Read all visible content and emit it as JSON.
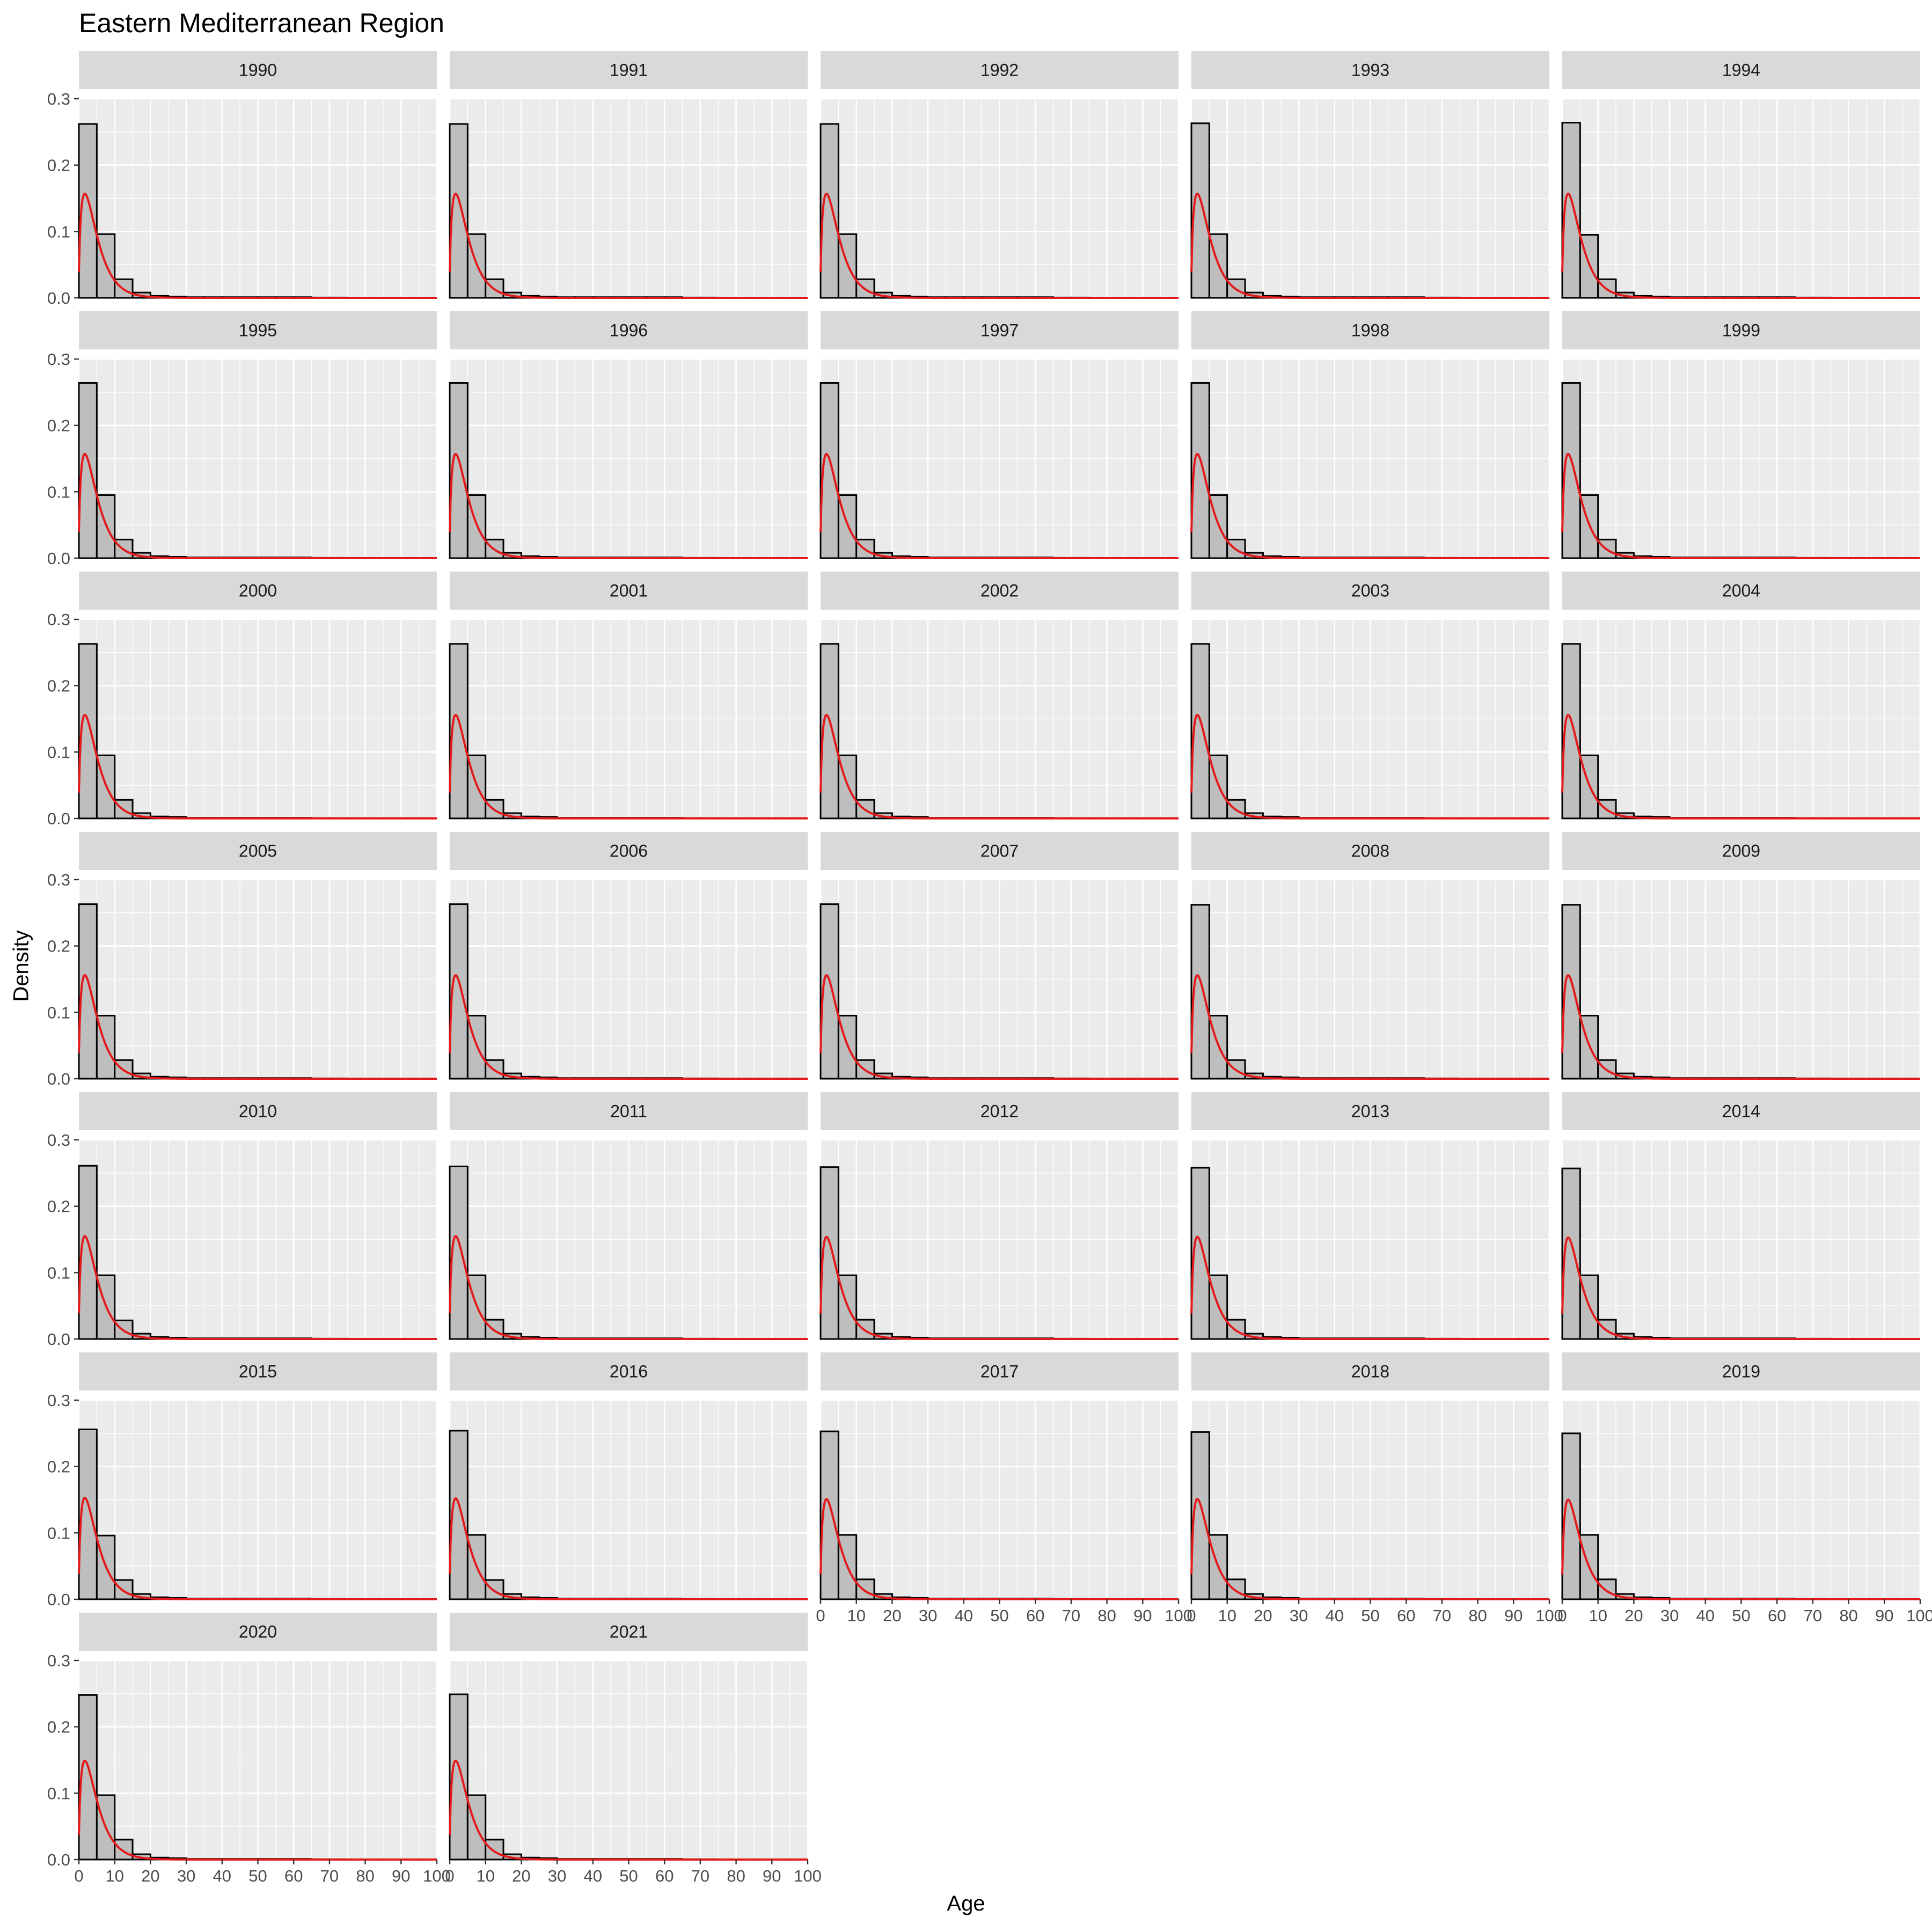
{
  "chart_data": {
    "type": "histogram",
    "title": "Eastern Mediterranean Region",
    "xlabel": "Age",
    "ylabel": "Density",
    "xlim": [
      0,
      100
    ],
    "ylim": [
      0,
      0.3
    ],
    "x_ticks": [
      0,
      10,
      20,
      30,
      40,
      50,
      60,
      70,
      80,
      90,
      100
    ],
    "y_ticks": [
      0.0,
      0.1,
      0.2,
      0.3
    ],
    "y_tick_labels": [
      "0.0",
      "0.1",
      "0.2",
      "0.3"
    ],
    "bin_edges": [
      0,
      5,
      10,
      15,
      20,
      25,
      30,
      35,
      40,
      45,
      50,
      55,
      60,
      65,
      70,
      75,
      80,
      85,
      90,
      95,
      100
    ],
    "grid": true,
    "colors": {
      "panel_bg": "#ebebeb",
      "strip_bg": "#d9d9d9",
      "bar_fill": "#bebebe",
      "bar_stroke": "#000000",
      "density_line": "#e31a1c",
      "grid": "#ffffff"
    },
    "panels": [
      {
        "label": "1990",
        "bars": [
          0.262,
          0.096,
          0.028,
          0.008,
          0.003,
          0.002,
          0.001,
          0.001,
          0.001,
          0.001,
          0.001,
          0.001,
          0.001,
          0.0005,
          0.0005,
          0,
          0,
          0,
          0,
          0
        ],
        "density_peak": 0.157
      },
      {
        "label": "1991",
        "bars": [
          0.262,
          0.096,
          0.028,
          0.008,
          0.003,
          0.002,
          0.001,
          0.001,
          0.001,
          0.001,
          0.001,
          0.001,
          0.001,
          0.0005,
          0.0005,
          0,
          0,
          0,
          0,
          0
        ],
        "density_peak": 0.157
      },
      {
        "label": "1992",
        "bars": [
          0.262,
          0.096,
          0.028,
          0.008,
          0.003,
          0.002,
          0.001,
          0.001,
          0.001,
          0.001,
          0.001,
          0.001,
          0.001,
          0.0005,
          0.0005,
          0,
          0,
          0,
          0,
          0
        ],
        "density_peak": 0.157
      },
      {
        "label": "1993",
        "bars": [
          0.263,
          0.096,
          0.028,
          0.008,
          0.003,
          0.002,
          0.001,
          0.001,
          0.001,
          0.001,
          0.001,
          0.001,
          0.001,
          0.0005,
          0.0005,
          0,
          0,
          0,
          0,
          0
        ],
        "density_peak": 0.157
      },
      {
        "label": "1994",
        "bars": [
          0.264,
          0.095,
          0.028,
          0.008,
          0.003,
          0.002,
          0.001,
          0.001,
          0.001,
          0.001,
          0.001,
          0.001,
          0.001,
          0.0005,
          0.0005,
          0,
          0,
          0,
          0,
          0
        ],
        "density_peak": 0.157
      },
      {
        "label": "1995",
        "bars": [
          0.264,
          0.095,
          0.028,
          0.008,
          0.003,
          0.002,
          0.001,
          0.001,
          0.001,
          0.001,
          0.001,
          0.001,
          0.001,
          0.0005,
          0.0005,
          0,
          0,
          0,
          0,
          0
        ],
        "density_peak": 0.157
      },
      {
        "label": "1996",
        "bars": [
          0.264,
          0.095,
          0.028,
          0.008,
          0.003,
          0.002,
          0.001,
          0.001,
          0.001,
          0.001,
          0.001,
          0.001,
          0.001,
          0.0005,
          0.0005,
          0,
          0,
          0,
          0,
          0
        ],
        "density_peak": 0.157
      },
      {
        "label": "1997",
        "bars": [
          0.264,
          0.095,
          0.028,
          0.008,
          0.003,
          0.002,
          0.001,
          0.001,
          0.001,
          0.001,
          0.001,
          0.001,
          0.001,
          0.0005,
          0.0005,
          0,
          0,
          0,
          0,
          0
        ],
        "density_peak": 0.157
      },
      {
        "label": "1998",
        "bars": [
          0.264,
          0.095,
          0.028,
          0.008,
          0.003,
          0.002,
          0.001,
          0.001,
          0.001,
          0.001,
          0.001,
          0.001,
          0.001,
          0.0005,
          0.0005,
          0,
          0,
          0,
          0,
          0
        ],
        "density_peak": 0.157
      },
      {
        "label": "1999",
        "bars": [
          0.264,
          0.095,
          0.028,
          0.008,
          0.003,
          0.002,
          0.001,
          0.001,
          0.001,
          0.001,
          0.001,
          0.001,
          0.001,
          0.0005,
          0.0005,
          0,
          0,
          0,
          0,
          0
        ],
        "density_peak": 0.157
      },
      {
        "label": "2000",
        "bars": [
          0.263,
          0.095,
          0.028,
          0.008,
          0.003,
          0.002,
          0.001,
          0.001,
          0.001,
          0.001,
          0.001,
          0.001,
          0.001,
          0.0005,
          0.0005,
          0,
          0,
          0,
          0,
          0
        ],
        "density_peak": 0.156
      },
      {
        "label": "2001",
        "bars": [
          0.263,
          0.095,
          0.028,
          0.008,
          0.003,
          0.002,
          0.001,
          0.001,
          0.001,
          0.001,
          0.001,
          0.001,
          0.001,
          0.0005,
          0.0005,
          0,
          0,
          0,
          0,
          0
        ],
        "density_peak": 0.156
      },
      {
        "label": "2002",
        "bars": [
          0.263,
          0.095,
          0.028,
          0.008,
          0.003,
          0.002,
          0.001,
          0.001,
          0.001,
          0.001,
          0.001,
          0.001,
          0.001,
          0.0005,
          0.0005,
          0,
          0,
          0,
          0,
          0
        ],
        "density_peak": 0.156
      },
      {
        "label": "2003",
        "bars": [
          0.263,
          0.095,
          0.028,
          0.008,
          0.003,
          0.002,
          0.001,
          0.001,
          0.001,
          0.001,
          0.001,
          0.001,
          0.001,
          0.0005,
          0.0005,
          0,
          0,
          0,
          0,
          0
        ],
        "density_peak": 0.156
      },
      {
        "label": "2004",
        "bars": [
          0.263,
          0.095,
          0.028,
          0.008,
          0.003,
          0.002,
          0.001,
          0.001,
          0.001,
          0.001,
          0.001,
          0.001,
          0.001,
          0.0005,
          0.0005,
          0,
          0,
          0,
          0,
          0
        ],
        "density_peak": 0.156
      },
      {
        "label": "2005",
        "bars": [
          0.263,
          0.095,
          0.028,
          0.008,
          0.003,
          0.002,
          0.001,
          0.001,
          0.001,
          0.001,
          0.001,
          0.001,
          0.001,
          0.0005,
          0.0005,
          0,
          0,
          0,
          0,
          0
        ],
        "density_peak": 0.156
      },
      {
        "label": "2006",
        "bars": [
          0.263,
          0.095,
          0.028,
          0.008,
          0.003,
          0.002,
          0.001,
          0.001,
          0.001,
          0.001,
          0.001,
          0.001,
          0.001,
          0.0005,
          0.0005,
          0,
          0,
          0,
          0,
          0
        ],
        "density_peak": 0.156
      },
      {
        "label": "2007",
        "bars": [
          0.263,
          0.095,
          0.028,
          0.008,
          0.003,
          0.002,
          0.001,
          0.001,
          0.001,
          0.001,
          0.001,
          0.001,
          0.001,
          0.0005,
          0.0005,
          0,
          0,
          0,
          0,
          0
        ],
        "density_peak": 0.156
      },
      {
        "label": "2008",
        "bars": [
          0.262,
          0.095,
          0.028,
          0.008,
          0.003,
          0.002,
          0.001,
          0.001,
          0.001,
          0.001,
          0.001,
          0.001,
          0.001,
          0.0005,
          0.0005,
          0,
          0,
          0,
          0,
          0
        ],
        "density_peak": 0.156
      },
      {
        "label": "2009",
        "bars": [
          0.262,
          0.095,
          0.028,
          0.008,
          0.003,
          0.002,
          0.001,
          0.001,
          0.001,
          0.001,
          0.001,
          0.001,
          0.001,
          0.0005,
          0.0005,
          0,
          0,
          0,
          0,
          0
        ],
        "density_peak": 0.156
      },
      {
        "label": "2010",
        "bars": [
          0.261,
          0.096,
          0.028,
          0.008,
          0.003,
          0.002,
          0.001,
          0.001,
          0.001,
          0.001,
          0.001,
          0.001,
          0.001,
          0.0005,
          0.0005,
          0,
          0,
          0,
          0,
          0
        ],
        "density_peak": 0.155
      },
      {
        "label": "2011",
        "bars": [
          0.26,
          0.096,
          0.029,
          0.008,
          0.003,
          0.002,
          0.001,
          0.001,
          0.001,
          0.001,
          0.001,
          0.001,
          0.001,
          0.0005,
          0.0005,
          0,
          0,
          0,
          0,
          0
        ],
        "density_peak": 0.155
      },
      {
        "label": "2012",
        "bars": [
          0.259,
          0.096,
          0.029,
          0.008,
          0.003,
          0.002,
          0.001,
          0.001,
          0.001,
          0.001,
          0.001,
          0.001,
          0.001,
          0.0005,
          0.0005,
          0,
          0,
          0,
          0,
          0
        ],
        "density_peak": 0.154
      },
      {
        "label": "2013",
        "bars": [
          0.258,
          0.096,
          0.029,
          0.008,
          0.003,
          0.002,
          0.001,
          0.001,
          0.001,
          0.001,
          0.001,
          0.001,
          0.001,
          0.0005,
          0.0005,
          0,
          0,
          0,
          0,
          0
        ],
        "density_peak": 0.154
      },
      {
        "label": "2014",
        "bars": [
          0.257,
          0.096,
          0.029,
          0.008,
          0.003,
          0.002,
          0.001,
          0.001,
          0.001,
          0.001,
          0.001,
          0.001,
          0.001,
          0.0005,
          0.0005,
          0,
          0,
          0,
          0,
          0
        ],
        "density_peak": 0.153
      },
      {
        "label": "2015",
        "bars": [
          0.256,
          0.096,
          0.029,
          0.008,
          0.003,
          0.002,
          0.001,
          0.001,
          0.001,
          0.001,
          0.001,
          0.001,
          0.001,
          0.0005,
          0.0005,
          0,
          0,
          0,
          0,
          0
        ],
        "density_peak": 0.153
      },
      {
        "label": "2016",
        "bars": [
          0.254,
          0.097,
          0.029,
          0.008,
          0.003,
          0.002,
          0.001,
          0.001,
          0.001,
          0.001,
          0.001,
          0.001,
          0.001,
          0.0005,
          0.0005,
          0,
          0,
          0,
          0,
          0
        ],
        "density_peak": 0.152
      },
      {
        "label": "2017",
        "bars": [
          0.253,
          0.097,
          0.03,
          0.008,
          0.003,
          0.002,
          0.001,
          0.001,
          0.001,
          0.001,
          0.001,
          0.001,
          0.001,
          0.0005,
          0.0005,
          0,
          0,
          0,
          0,
          0
        ],
        "density_peak": 0.151
      },
      {
        "label": "2018",
        "bars": [
          0.252,
          0.097,
          0.03,
          0.008,
          0.003,
          0.002,
          0.001,
          0.001,
          0.001,
          0.001,
          0.001,
          0.001,
          0.001,
          0.0005,
          0.0005,
          0,
          0,
          0,
          0,
          0
        ],
        "density_peak": 0.151
      },
      {
        "label": "2019",
        "bars": [
          0.25,
          0.097,
          0.03,
          0.008,
          0.003,
          0.002,
          0.001,
          0.001,
          0.001,
          0.001,
          0.001,
          0.001,
          0.001,
          0.0005,
          0.0005,
          0,
          0,
          0,
          0,
          0
        ],
        "density_peak": 0.15
      },
      {
        "label": "2020",
        "bars": [
          0.248,
          0.097,
          0.03,
          0.008,
          0.003,
          0.002,
          0.001,
          0.001,
          0.001,
          0.001,
          0.001,
          0.001,
          0.001,
          0.0005,
          0.0005,
          0,
          0,
          0,
          0,
          0
        ],
        "density_peak": 0.149
      },
      {
        "label": "2021",
        "bars": [
          0.249,
          0.097,
          0.03,
          0.008,
          0.003,
          0.002,
          0.001,
          0.001,
          0.001,
          0.001,
          0.001,
          0.001,
          0.001,
          0.0005,
          0.0005,
          0,
          0,
          0,
          0,
          0
        ],
        "density_peak": 0.149
      }
    ]
  }
}
